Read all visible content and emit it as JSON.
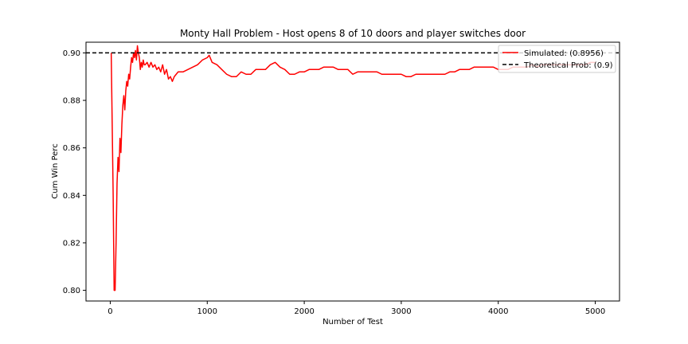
{
  "chart_data": {
    "type": "line",
    "title": "Monty Hall Problem - Host opens 8 of 10 doors and player switches door",
    "xlabel": "Number of Test",
    "ylabel": "Cum Win Perc",
    "xlim": [
      -250,
      5250
    ],
    "ylim": [
      0.7955,
      0.9045
    ],
    "xticks": [
      0,
      1000,
      2000,
      3000,
      4000,
      5000
    ],
    "yticks": [
      0.8,
      0.82,
      0.84,
      0.86,
      0.88,
      0.9
    ],
    "grid": false,
    "legend_position": "top-right",
    "series": [
      {
        "name": "Simulated: (0.8956)",
        "color": "#ff0000",
        "style": "solid",
        "x": [
          10,
          20,
          30,
          40,
          50,
          60,
          70,
          80,
          90,
          100,
          110,
          120,
          130,
          140,
          150,
          160,
          170,
          180,
          190,
          200,
          210,
          220,
          230,
          240,
          250,
          260,
          270,
          280,
          290,
          300,
          310,
          320,
          330,
          340,
          350,
          360,
          380,
          400,
          420,
          440,
          460,
          480,
          500,
          520,
          540,
          560,
          580,
          600,
          620,
          640,
          660,
          680,
          700,
          750,
          800,
          850,
          900,
          950,
          1000,
          1020,
          1050,
          1100,
          1150,
          1200,
          1250,
          1300,
          1350,
          1400,
          1450,
          1500,
          1550,
          1600,
          1650,
          1700,
          1750,
          1800,
          1850,
          1900,
          1950,
          2000,
          2050,
          2100,
          2150,
          2200,
          2250,
          2300,
          2350,
          2400,
          2450,
          2500,
          2550,
          2600,
          2650,
          2700,
          2750,
          2800,
          2850,
          2900,
          2950,
          3000,
          3050,
          3100,
          3150,
          3200,
          3250,
          3300,
          3350,
          3400,
          3450,
          3500,
          3550,
          3600,
          3650,
          3700,
          3750,
          3800,
          3850,
          3900,
          3950,
          4000,
          4050,
          4100,
          4150,
          4200,
          4250,
          4300,
          4350,
          4400,
          4450,
          4500,
          4550,
          4600,
          4650,
          4700,
          4750,
          4800,
          4850,
          4900,
          4950,
          5000
        ],
        "y": [
          0.9,
          0.87,
          0.84,
          0.8,
          0.8,
          0.82,
          0.845,
          0.856,
          0.85,
          0.864,
          0.858,
          0.87,
          0.878,
          0.882,
          0.876,
          0.884,
          0.888,
          0.886,
          0.891,
          0.889,
          0.894,
          0.898,
          0.896,
          0.9,
          0.898,
          0.901,
          0.897,
          0.903,
          0.9,
          0.898,
          0.893,
          0.896,
          0.894,
          0.897,
          0.895,
          0.895,
          0.896,
          0.894,
          0.896,
          0.894,
          0.895,
          0.893,
          0.894,
          0.892,
          0.895,
          0.891,
          0.893,
          0.889,
          0.89,
          0.888,
          0.89,
          0.891,
          0.892,
          0.892,
          0.893,
          0.894,
          0.895,
          0.897,
          0.898,
          0.899,
          0.896,
          0.895,
          0.893,
          0.891,
          0.89,
          0.89,
          0.892,
          0.891,
          0.891,
          0.893,
          0.893,
          0.893,
          0.895,
          0.896,
          0.894,
          0.893,
          0.891,
          0.891,
          0.892,
          0.892,
          0.893,
          0.893,
          0.893,
          0.894,
          0.894,
          0.894,
          0.893,
          0.893,
          0.893,
          0.891,
          0.892,
          0.892,
          0.892,
          0.892,
          0.892,
          0.891,
          0.891,
          0.891,
          0.891,
          0.891,
          0.89,
          0.89,
          0.891,
          0.891,
          0.891,
          0.891,
          0.891,
          0.891,
          0.891,
          0.892,
          0.892,
          0.893,
          0.893,
          0.893,
          0.894,
          0.894,
          0.894,
          0.894,
          0.894,
          0.893,
          0.893,
          0.893,
          0.894,
          0.894,
          0.894,
          0.894,
          0.895,
          0.894,
          0.895,
          0.895,
          0.895,
          0.895,
          0.895,
          0.895,
          0.895,
          0.895,
          0.895,
          0.895,
          0.896,
          0.896
        ]
      },
      {
        "name": "Theoretical Prob: (0.9)",
        "color": "#000000",
        "style": "dashed",
        "x": [
          -250,
          5250
        ],
        "y": [
          0.9,
          0.9
        ]
      }
    ]
  }
}
